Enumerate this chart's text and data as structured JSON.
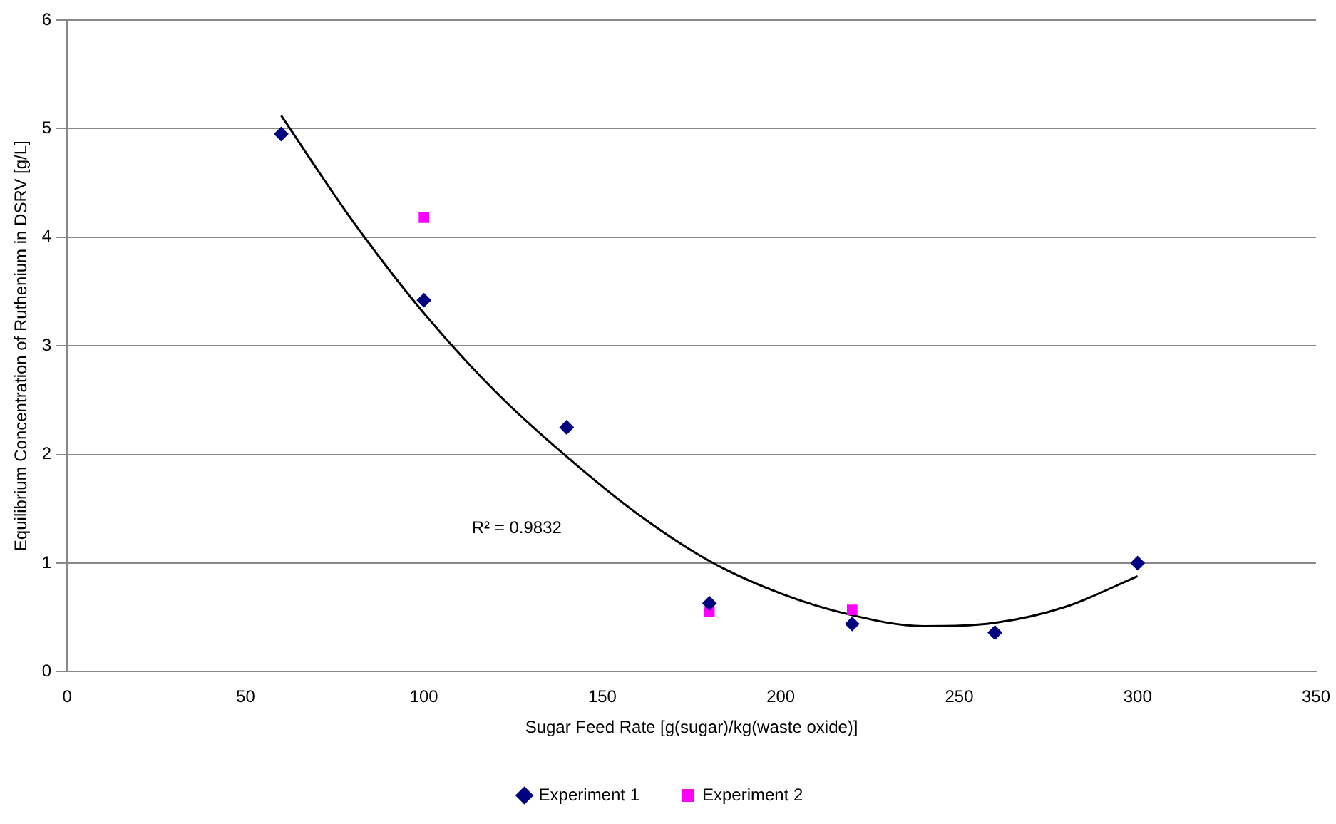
{
  "chart_data": {
    "type": "scatter",
    "xlabel": "Sugar Feed Rate [g(sugar)/kg(waste oxide)]",
    "ylabel": "Equilibrium Concentration of Ruthenium in DSRV [g/L]",
    "xlim": [
      0,
      350
    ],
    "xticks": [
      0,
      50,
      100,
      150,
      200,
      250,
      300,
      350
    ],
    "ylim": [
      0,
      6
    ],
    "yticks": [
      0,
      1,
      2,
      3,
      4,
      5,
      6
    ],
    "grid": "y",
    "legend": "bottom",
    "annotations": [
      "R² = 0.9832"
    ],
    "series": [
      {
        "name": "Experiment 1",
        "color": "#000080",
        "marker": "diamond",
        "x": [
          60,
          100,
          140,
          180,
          220,
          260,
          300
        ],
        "values": [
          4.95,
          3.42,
          2.25,
          0.63,
          0.44,
          0.36,
          1.0
        ]
      },
      {
        "name": "Experiment 2",
        "color": "#ff00ff",
        "marker": "square",
        "x": [
          100,
          180,
          220
        ],
        "values": [
          4.18,
          0.55,
          0.57
        ]
      },
      {
        "type": "line",
        "color": "#000000",
        "marker": "none",
        "line_style": "solid",
        "x": [
          60,
          80,
          100,
          120,
          140,
          160,
          180,
          200,
          220,
          240,
          260,
          280,
          300
        ],
        "values": [
          5.12,
          4.15,
          3.3,
          2.58,
          1.98,
          1.45,
          1.02,
          0.72,
          0.52,
          0.42,
          0.45,
          0.6,
          0.88
        ]
      }
    ]
  }
}
